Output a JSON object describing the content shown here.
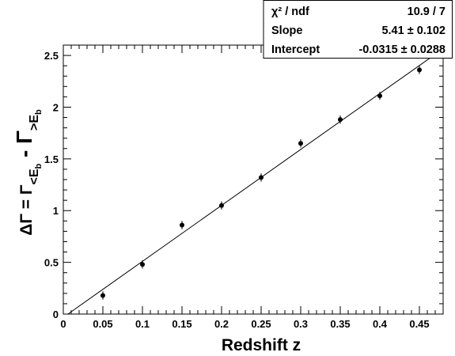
{
  "chart_data": {
    "type": "scatter",
    "xlabel": "Redshift z",
    "ylabel": "ΔΓ = Γ<E_b - Γ>E_b",
    "xlim": [
      0,
      0.48
    ],
    "ylim": [
      0,
      2.6
    ],
    "x_ticks": [
      "0",
      "0.05",
      "0.1",
      "0.15",
      "0.2",
      "0.25",
      "0.3",
      "0.35",
      "0.4",
      "0.45"
    ],
    "y_ticks": [
      "0",
      "0.5",
      "1",
      "1.5",
      "2",
      "2.5"
    ],
    "grid": false,
    "series": [
      {
        "x": [
          0.05,
          0.1,
          0.15,
          0.2,
          0.25,
          0.3,
          0.35,
          0.4,
          0.45
        ],
        "y": [
          0.18,
          0.48,
          0.86,
          1.05,
          1.32,
          1.65,
          1.88,
          2.11,
          2.36
        ],
        "yerr": [
          0.04,
          0.04,
          0.04,
          0.04,
          0.04,
          0.04,
          0.04,
          0.04,
          0.04
        ]
      }
    ],
    "fit": {
      "slope": 5.41,
      "intercept": -0.0315
    },
    "stats_box": {
      "rows": [
        {
          "label": "χ² / ndf",
          "value": "10.9 / 7"
        },
        {
          "label": "Slope",
          "value": "5.41 ± 0.102"
        },
        {
          "label": "Intercept",
          "value": "-0.0315 ± 0.0288"
        }
      ]
    }
  }
}
